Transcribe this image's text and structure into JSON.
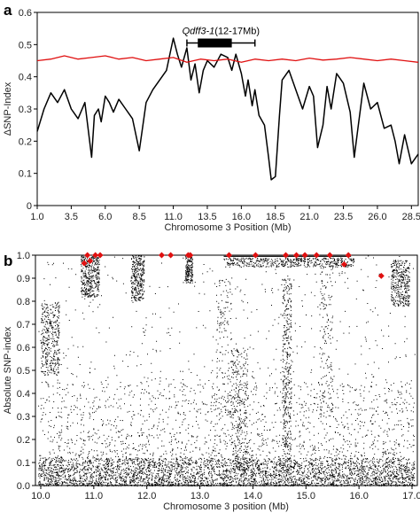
{
  "chart_data": [
    {
      "panel": "a",
      "type": "line",
      "xlabel": "Chromosome 3 Position (Mb)",
      "ylabel": "ΔSNP-Index",
      "xlim": [
        1.0,
        29.0
      ],
      "ylim": [
        0,
        0.6
      ],
      "xticks": [
        1.0,
        3.5,
        6.0,
        8.5,
        11.0,
        13.5,
        16.0,
        18.5,
        21.0,
        23.5,
        26.0,
        28.5
      ],
      "xtick_labels": [
        "1.0",
        "3.5",
        "6.0",
        "8.5",
        "11.0",
        "13.5",
        "16.0",
        "18.5",
        "21.0",
        "23.5",
        "26.0",
        "28.5"
      ],
      "yticks": [
        0,
        0.1,
        0.2,
        0.3,
        0.4,
        0.5,
        0.6
      ],
      "ytick_labels": [
        "0",
        "0.1",
        "0.2",
        "0.3",
        "0.4",
        "0.5",
        "0.6"
      ],
      "qtl": {
        "name": "Qdff3-1",
        "range_label": "(12-17Mb)",
        "start": 12.0,
        "end": 17.0,
        "box_start": 12.8,
        "box_end": 15.3,
        "y": 0.505
      },
      "series": [
        {
          "color": "#000000",
          "x": [
            1.0,
            1.5,
            2.0,
            2.5,
            3.0,
            3.5,
            4.0,
            4.5,
            5.0,
            5.2,
            5.5,
            5.7,
            6.0,
            6.3,
            6.6,
            7.0,
            7.5,
            8.0,
            8.5,
            9.0,
            9.5,
            10.0,
            10.5,
            10.8,
            11.0,
            11.3,
            11.6,
            12.0,
            12.3,
            12.6,
            12.9,
            13.2,
            13.5,
            14.0,
            14.5,
            15.0,
            15.3,
            15.6,
            16.0,
            16.3,
            16.5,
            16.8,
            17.0,
            17.3,
            17.7,
            18.0,
            18.2,
            18.5,
            18.8,
            19.0,
            19.5,
            20.0,
            20.5,
            21.0,
            21.3,
            21.6,
            22.0,
            22.3,
            22.6,
            23.0,
            23.5,
            24.0,
            24.3,
            24.6,
            25.0,
            25.5,
            26.0,
            26.5,
            27.0,
            27.3,
            27.6,
            28.0,
            28.5,
            29.0
          ],
          "values": [
            0.23,
            0.3,
            0.35,
            0.32,
            0.36,
            0.3,
            0.27,
            0.32,
            0.15,
            0.28,
            0.3,
            0.26,
            0.34,
            0.32,
            0.29,
            0.33,
            0.3,
            0.27,
            0.17,
            0.32,
            0.36,
            0.39,
            0.42,
            0.48,
            0.52,
            0.47,
            0.43,
            0.49,
            0.39,
            0.44,
            0.35,
            0.42,
            0.45,
            0.43,
            0.47,
            0.46,
            0.42,
            0.47,
            0.41,
            0.34,
            0.39,
            0.31,
            0.36,
            0.28,
            0.25,
            0.15,
            0.08,
            0.09,
            0.28,
            0.39,
            0.42,
            0.36,
            0.3,
            0.37,
            0.34,
            0.18,
            0.25,
            0.37,
            0.3,
            0.41,
            0.38,
            0.29,
            0.15,
            0.25,
            0.38,
            0.3,
            0.32,
            0.24,
            0.25,
            0.2,
            0.13,
            0.22,
            0.13,
            0.16
          ]
        },
        {
          "color": "#e01010",
          "x": [
            1.0,
            2.0,
            3.0,
            4.0,
            5.0,
            6.0,
            7.0,
            8.0,
            9.0,
            10.0,
            11.0,
            12.0,
            13.0,
            14.0,
            15.0,
            16.0,
            17.0,
            18.0,
            19.0,
            20.0,
            21.0,
            22.0,
            23.0,
            24.0,
            25.0,
            26.0,
            27.0,
            28.0,
            29.0
          ],
          "values": [
            0.45,
            0.455,
            0.465,
            0.455,
            0.46,
            0.465,
            0.455,
            0.46,
            0.45,
            0.455,
            0.46,
            0.445,
            0.455,
            0.45,
            0.455,
            0.445,
            0.455,
            0.45,
            0.455,
            0.45,
            0.458,
            0.452,
            0.455,
            0.46,
            0.455,
            0.45,
            0.455,
            0.45,
            0.445
          ]
        }
      ]
    },
    {
      "panel": "b",
      "type": "scatter",
      "xlabel": "Chromosome 3 position (Mb)",
      "ylabel": "Absolute SNP-index",
      "xlim": [
        9.9,
        17.1
      ],
      "ylim": [
        0,
        1.0
      ],
      "xticks": [
        10.0,
        11.0,
        12.0,
        13.0,
        14.0,
        15.0,
        16.0,
        17.0
      ],
      "xtick_labels": [
        "10.0",
        "11.0",
        "12.0",
        "13.0",
        "14.0",
        "15.0",
        "16.0",
        "17.0"
      ],
      "yticks": [
        0,
        0.1,
        0.2,
        0.3,
        0.4,
        0.5,
        0.6,
        0.7,
        0.8,
        0.9,
        1.0
      ],
      "ytick_labels": [
        "0.0",
        "0.1",
        "0.2",
        "0.3",
        "0.4",
        "0.5",
        "0.6",
        "0.7",
        "0.8",
        "0.9",
        "1.0"
      ],
      "dot_color": "#000000",
      "marker_color": "#e01010",
      "markers": [
        {
          "x": 10.82,
          "y": 0.965
        },
        {
          "x": 10.88,
          "y": 1.0
        },
        {
          "x": 10.93,
          "y": 0.975
        },
        {
          "x": 11.03,
          "y": 1.0
        },
        {
          "x": 11.12,
          "y": 1.0
        },
        {
          "x": 12.28,
          "y": 1.0
        },
        {
          "x": 12.45,
          "y": 1.0
        },
        {
          "x": 12.78,
          "y": 1.0
        },
        {
          "x": 12.82,
          "y": 1.0
        },
        {
          "x": 13.55,
          "y": 1.0
        },
        {
          "x": 14.05,
          "y": 1.0
        },
        {
          "x": 14.62,
          "y": 1.0
        },
        {
          "x": 14.82,
          "y": 1.0
        },
        {
          "x": 14.98,
          "y": 1.0
        },
        {
          "x": 15.2,
          "y": 1.0
        },
        {
          "x": 15.45,
          "y": 1.0
        },
        {
          "x": 15.72,
          "y": 0.96
        },
        {
          "x": 15.8,
          "y": 1.0
        },
        {
          "x": 16.42,
          "y": 0.91
        }
      ],
      "density": [
        {
          "x0": 10.0,
          "x1": 10.35,
          "y0": 0.48,
          "y1": 0.8,
          "n": 380
        },
        {
          "x0": 10.75,
          "x1": 11.1,
          "y0": 0.82,
          "y1": 1.0,
          "n": 400
        },
        {
          "x0": 11.7,
          "x1": 11.95,
          "y0": 0.8,
          "y1": 1.0,
          "n": 320
        },
        {
          "x0": 12.72,
          "x1": 12.86,
          "y0": 0.88,
          "y1": 1.0,
          "n": 170
        },
        {
          "x0": 13.45,
          "x1": 15.9,
          "y0": 0.95,
          "y1": 0.99,
          "n": 500
        },
        {
          "x0": 16.6,
          "x1": 16.95,
          "y0": 0.78,
          "y1": 0.98,
          "n": 360
        },
        {
          "x0": 13.6,
          "x1": 13.9,
          "y0": 0.05,
          "y1": 0.6,
          "n": 300
        },
        {
          "x0": 14.55,
          "x1": 14.72,
          "y0": 0.05,
          "y1": 0.9,
          "n": 400
        },
        {
          "x0": 9.95,
          "x1": 17.05,
          "y0": 0.0,
          "y1": 0.12,
          "n": 2500
        },
        {
          "x0": 9.95,
          "x1": 17.05,
          "y0": 0.0,
          "y1": 0.45,
          "n": 2200
        },
        {
          "x0": 9.95,
          "x1": 17.05,
          "y0": 0.0,
          "y1": 1.0,
          "n": 1200
        },
        {
          "x0": 13.3,
          "x1": 13.6,
          "y0": 0.3,
          "y1": 0.9,
          "n": 150
        },
        {
          "x0": 15.25,
          "x1": 15.5,
          "y0": 0.3,
          "y1": 0.95,
          "n": 150
        }
      ]
    }
  ]
}
